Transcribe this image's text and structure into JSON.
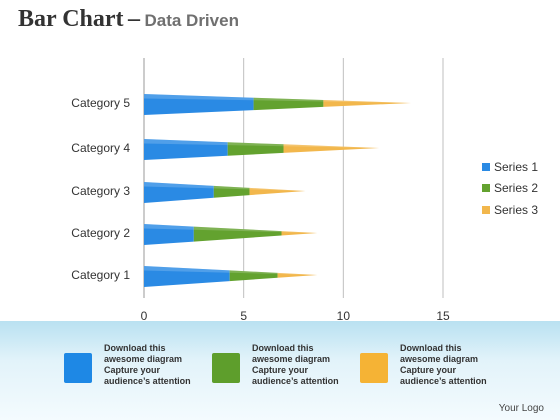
{
  "header": {
    "title": "Bar Chart",
    "separator": "–",
    "subtitle": "Data Driven"
  },
  "chart_data": {
    "type": "bar",
    "orientation": "horizontal",
    "stacked": true,
    "categories": [
      "Category 1",
      "Category 2",
      "Category 3",
      "Category 4",
      "Category 5"
    ],
    "series": [
      {
        "name": "Series 1",
        "values": [
          4.3,
          2.5,
          3.5,
          4.2,
          5.5
        ],
        "color": "#2a8ae4"
      },
      {
        "name": "Series 2",
        "values": [
          2.4,
          4.4,
          1.8,
          2.8,
          3.5
        ],
        "color": "#63a22f"
      },
      {
        "name": "Series 3",
        "values": [
          2.0,
          1.8,
          2.8,
          4.8,
          4.4
        ],
        "color": "#f2b74c"
      }
    ],
    "xticks": [
      0,
      5,
      10,
      15
    ],
    "xlim": [
      0,
      15
    ],
    "grid": "vertical",
    "legend": "right"
  },
  "cards": [
    {
      "line1": "Download this",
      "line2": "awesome diagram",
      "line3": "Capture your",
      "line4": "audience’s attention",
      "color": "#1e88e5"
    },
    {
      "line1": "Download this",
      "line2": "awesome diagram",
      "line3": "Capture your",
      "line4": "audience’s attention",
      "color": "#5e9e2c"
    },
    {
      "line1": "Download this",
      "line2": "awesome diagram",
      "line3": "Capture your",
      "line4": "audience’s attention",
      "color": "#f5b335"
    }
  ],
  "footer": {
    "logo": "Your Logo"
  }
}
